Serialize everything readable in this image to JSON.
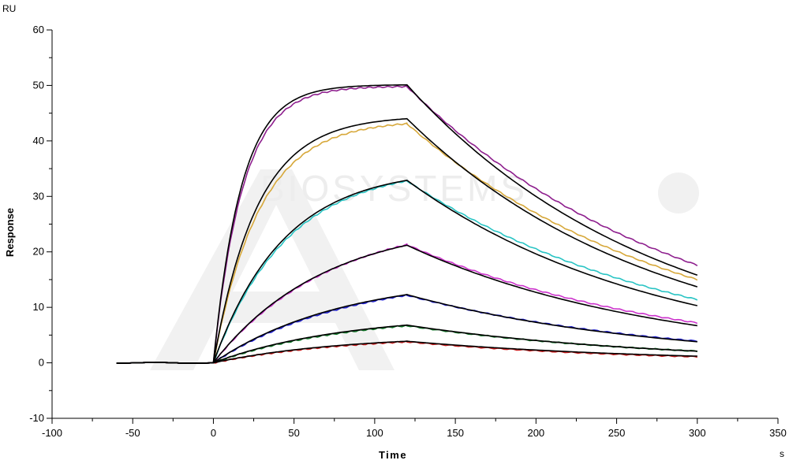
{
  "chart_data": {
    "type": "line",
    "title": "",
    "xlabel": "Time",
    "ylabel": "Response",
    "x_unit": "s",
    "y_unit": "RU",
    "xlim": [
      -100,
      350
    ],
    "ylim": [
      -10,
      60
    ],
    "x_ticks": [
      -100,
      -50,
      0,
      50,
      100,
      150,
      200,
      250,
      300,
      350
    ],
    "y_ticks": [
      -10,
      0,
      10,
      20,
      30,
      40,
      50,
      60
    ],
    "grid": false,
    "legend": "none",
    "association_start": 0,
    "dissociation_start": 120,
    "end_time": 300,
    "baseline_start": -60,
    "series": [
      {
        "color": "#8e1f8e",
        "values_at": {
          "x": [
            0,
            120,
            300
          ],
          "y": [
            0,
            49.8,
            17.6
          ]
        }
      },
      {
        "color": "#d7a83a",
        "values_at": {
          "x": [
            0,
            120,
            300
          ],
          "y": [
            0,
            43.1,
            15.0
          ]
        }
      },
      {
        "color": "#28c4c4",
        "values_at": {
          "x": [
            0,
            120,
            300
          ],
          "y": [
            0,
            32.8,
            11.4
          ]
        }
      },
      {
        "color": "#cc33cc",
        "values_at": {
          "x": [
            0,
            120,
            300
          ],
          "y": [
            0,
            21.3,
            7.2
          ]
        }
      },
      {
        "color": "#2020d0",
        "values_at": {
          "x": [
            0,
            120,
            300
          ],
          "y": [
            0,
            12.2,
            3.9
          ]
        }
      },
      {
        "color": "#127a2a",
        "values_at": {
          "x": [
            0,
            120,
            300
          ],
          "y": [
            0,
            6.7,
            2.1
          ]
        }
      },
      {
        "color": "#c81e1e",
        "values_at": {
          "x": [
            0,
            120,
            300
          ],
          "y": [
            0,
            3.8,
            1.1
          ]
        }
      }
    ],
    "fits": [
      {
        "color": "#000000",
        "values_at": {
          "x": [
            0,
            120,
            300
          ],
          "y": [
            0,
            50.1,
            15.8
          ]
        }
      },
      {
        "color": "#000000",
        "values_at": {
          "x": [
            0,
            120,
            300
          ],
          "y": [
            0,
            44.0,
            13.7
          ]
        }
      },
      {
        "color": "#000000",
        "values_at": {
          "x": [
            0,
            120,
            300
          ],
          "y": [
            0,
            32.9,
            10.3
          ]
        }
      },
      {
        "color": "#000000",
        "values_at": {
          "x": [
            0,
            120,
            300
          ],
          "y": [
            0,
            21.2,
            6.7
          ]
        }
      },
      {
        "color": "#000000",
        "values_at": {
          "x": [
            0,
            120,
            300
          ],
          "y": [
            0,
            12.3,
            3.8
          ]
        }
      },
      {
        "color": "#000000",
        "values_at": {
          "x": [
            0,
            120,
            300
          ],
          "y": [
            0,
            6.8,
            2.1
          ]
        }
      },
      {
        "color": "#000000",
        "values_at": {
          "x": [
            0,
            120,
            300
          ],
          "y": [
            0,
            3.9,
            1.2
          ]
        }
      }
    ]
  }
}
